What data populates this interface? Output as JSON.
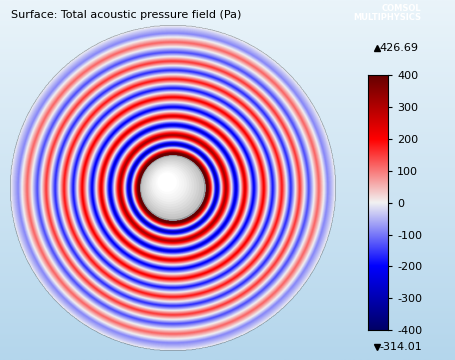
{
  "chart_data": {
    "type": "surface",
    "title": "Surface: Total acoustic pressure field (Pa)",
    "logo": [
      "COMSOL",
      "MULTIPHYSICS"
    ],
    "radial_profile": {
      "r": [
        0.2,
        0.215,
        0.27,
        0.325,
        0.387,
        0.442,
        0.497,
        0.558,
        0.613,
        0.669,
        0.724,
        0.779,
        0.834,
        0.896,
        0.951,
        1.0
      ],
      "values": [
        400,
        420,
        -310,
        330,
        -260,
        260,
        -220,
        220,
        -190,
        190,
        -170,
        160,
        -140,
        120,
        -90,
        0
      ]
    },
    "colorbar": {
      "range": [
        -400,
        400
      ],
      "ticks": [
        -400,
        -300,
        -200,
        -100,
        0,
        100,
        200,
        300,
        400
      ]
    },
    "max": 426.69,
    "min": -314.01
  }
}
